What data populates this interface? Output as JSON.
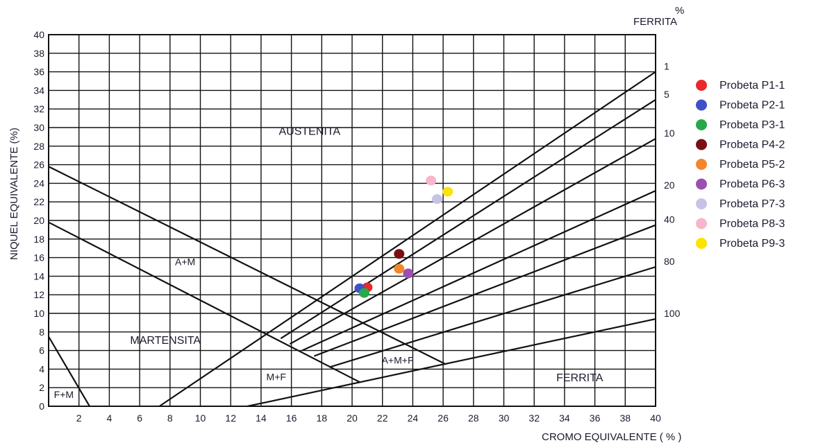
{
  "chart_data": {
    "type": "scatter",
    "title": "",
    "xlabel": "CROMO EQUIVALENTE  ( % )",
    "ylabel": "NIQUEL EQUIVALENTE (%)",
    "xlim": [
      0,
      40
    ],
    "ylim": [
      0,
      40
    ],
    "x_ticks": [
      2,
      4,
      6,
      8,
      10,
      12,
      14,
      16,
      18,
      20,
      22,
      24,
      26,
      28,
      30,
      32,
      34,
      36,
      38,
      40
    ],
    "y_ticks": [
      0,
      2,
      4,
      6,
      8,
      10,
      12,
      14,
      16,
      18,
      20,
      22,
      24,
      26,
      28,
      30,
      32,
      34,
      36,
      38,
      40
    ],
    "grid": true,
    "ferrite_axis_title": [
      "%",
      "FERRITA"
    ],
    "ferrite_lines": [
      {
        "label": "1",
        "points": [
          [
            7.3,
            0
          ],
          [
            40,
            36
          ]
        ]
      },
      {
        "label": "5",
        "points": [
          [
            15.3,
            7.3
          ],
          [
            40,
            33
          ]
        ]
      },
      {
        "label": "10",
        "points": [
          [
            15.9,
            6.7
          ],
          [
            40,
            28.8
          ]
        ]
      },
      {
        "label": "20",
        "points": [
          [
            16.7,
            6.0
          ],
          [
            40,
            23.2
          ]
        ]
      },
      {
        "label": "40",
        "points": [
          [
            17.5,
            5.4
          ],
          [
            40,
            19.5
          ]
        ]
      },
      {
        "label": "80",
        "points": [
          [
            18.5,
            4.2
          ],
          [
            40,
            15
          ]
        ]
      },
      {
        "label": "100",
        "points": [
          [
            13.1,
            0
          ],
          [
            40,
            9.4
          ]
        ]
      }
    ],
    "boundary_lines": [
      {
        "points": [
          [
            0,
            25.8
          ],
          [
            26.2,
            4.5
          ]
        ]
      },
      {
        "points": [
          [
            0,
            19.8
          ],
          [
            20.5,
            2.6
          ]
        ]
      },
      {
        "points": [
          [
            0,
            7.5
          ],
          [
            2.7,
            0
          ]
        ]
      }
    ],
    "regions": [
      {
        "label": "AUSTENITA",
        "x": 17.2,
        "y": 29.2
      },
      {
        "label": "MARTENSITA",
        "x": 7.7,
        "y": 6.7
      },
      {
        "label": "A+M",
        "x": 9,
        "y": 15.2
      },
      {
        "label": "M+F",
        "x": 15,
        "y": 2.8
      },
      {
        "label": "A+M+F",
        "x": 23,
        "y": 4.6
      },
      {
        "label": "FERRITA",
        "x": 35,
        "y": 2.7
      },
      {
        "label": "F+M",
        "x": 1,
        "y": 0.9
      }
    ],
    "series": [
      {
        "name": "Probeta P1-1",
        "color": "#e8282b",
        "x": 21.0,
        "y": 12.8
      },
      {
        "name": "Probeta P2-1",
        "color": "#3f51c9",
        "x": 20.5,
        "y": 12.7
      },
      {
        "name": "Probeta P3-1",
        "color": "#27a84a",
        "x": 20.8,
        "y": 12.2
      },
      {
        "name": "Probeta P4-2",
        "color": "#7a1015",
        "x": 23.1,
        "y": 16.4
      },
      {
        "name": "Probeta P5-2",
        "color": "#f2872c",
        "x": 23.1,
        "y": 14.8
      },
      {
        "name": "Probeta P6-3",
        "color": "#9b4fb0",
        "x": 23.7,
        "y": 14.3
      },
      {
        "name": "Probeta P7-3",
        "color": "#c6c3e6",
        "x": 25.6,
        "y": 22.3
      },
      {
        "name": "Probeta P8-3",
        "color": "#f7b6c9",
        "x": 25.2,
        "y": 24.3
      },
      {
        "name": "Probeta P9-3",
        "color": "#fbe400",
        "x": 26.3,
        "y": 23.1
      }
    ],
    "legend_placement": "right"
  }
}
